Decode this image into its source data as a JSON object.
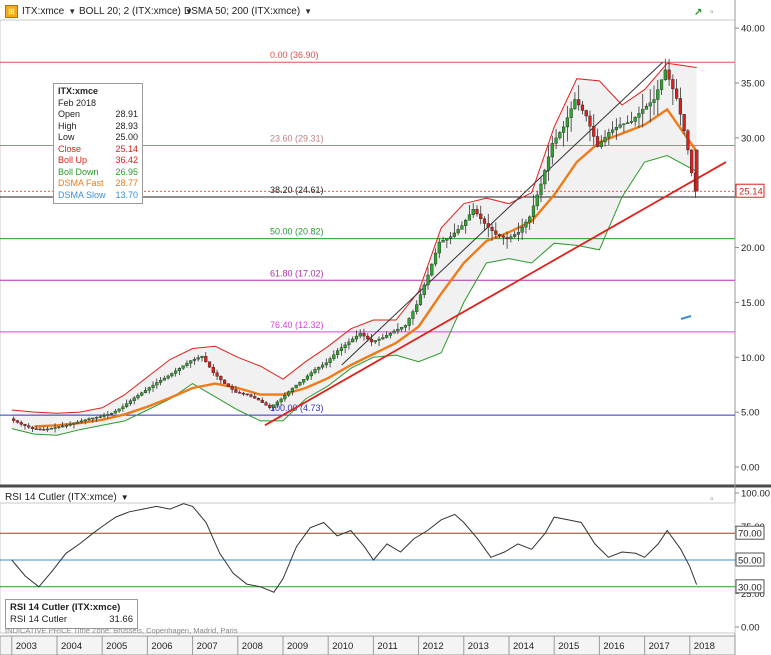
{
  "header": {
    "symbol": "ITX:xmce",
    "boll": "BOLL 20; 2 (ITX:xmce)",
    "dsma": "DSMA 50; 200 (ITX:xmce)",
    "symbol_icon": "chart-logo-icon",
    "trend_icon": "trend-arrow-icon",
    "window_icon": "window-restore-icon"
  },
  "legend": {
    "title": "ITX:xmce",
    "date": "Feb 2018",
    "rows": [
      {
        "label": "Open",
        "value": "28.91",
        "color": "#222222"
      },
      {
        "label": "High",
        "value": "28.93",
        "color": "#222222"
      },
      {
        "label": "Low",
        "value": "25.00",
        "color": "#222222"
      },
      {
        "label": "Close",
        "value": "25.14",
        "color": "#e0201b"
      },
      {
        "label": "Boll Up",
        "value": "36.42",
        "color": "#e0201b"
      },
      {
        "label": "Boll Down",
        "value": "26.95",
        "color": "#2a9a2a"
      },
      {
        "label": "DSMA Fast",
        "value": "28.77",
        "color": "#f07a18"
      },
      {
        "label": "DSMA Slow",
        "value": "13.70",
        "color": "#3a8fd6"
      }
    ]
  },
  "rsi_pane": {
    "title": "RSI 14 Cutler (ITX:xmce)",
    "box_title": "RSI 14 Cutler (ITX:xmce)",
    "box_label": "RSI 14 Cutler",
    "box_value": "31.66"
  },
  "footnote": "INDICATIVE PRICE  Time Zone: Brussels, Copenhagen, Madrid, Paris",
  "colors": {
    "bull": "#2fa32f",
    "bear": "#d8201c",
    "boll_up": "#e0201b",
    "boll_down": "#2a9a2a",
    "dsma_fast": "#f07a18",
    "trend": "#e0201b",
    "rsi_line": "#333333"
  },
  "chart_data": [
    {
      "type": "candlestick",
      "title": "ITX:xmce",
      "y_axis_labels": [
        "0.00",
        "5.00",
        "10.00",
        "15.00",
        "20.00",
        "25.00",
        "30.00",
        "35.00",
        "40.00"
      ],
      "ylim": [
        0,
        40
      ],
      "x_axis_labels": [
        "2003",
        "2004",
        "2005",
        "2006",
        "2007",
        "2008",
        "2009",
        "2010",
        "2011",
        "2012",
        "2013",
        "2014",
        "2015",
        "2016",
        "2017",
        "2018"
      ],
      "last_price_label": "25.14",
      "last_price": 25.14,
      "fibonacci_levels": [
        {
          "label": "0.00 (36.90)",
          "value": 36.9,
          "color": "#e05050"
        },
        {
          "label": "23.60 (29.31)",
          "value": 29.31,
          "color": "#c08080"
        },
        {
          "label": "38.20 (24.61)",
          "value": 24.61,
          "color": "#222222"
        },
        {
          "label": "50.00 (20.82)",
          "value": 20.82,
          "color": "#2a9a2a"
        },
        {
          "label": "61.80 (17.02)",
          "value": 17.02,
          "color": "#b030b0"
        },
        {
          "label": "76.40 (12.32)",
          "value": 12.32,
          "color": "#e040e0"
        },
        {
          "label": "100.00 (4.73)",
          "value": 4.73,
          "color": "#3030c0"
        }
      ],
      "price": [
        [
          2003.0,
          4.4
        ],
        [
          2003.25,
          3.9
        ],
        [
          2003.5,
          3.5
        ],
        [
          2003.75,
          3.4
        ],
        [
          2004.0,
          3.6
        ],
        [
          2004.25,
          3.8
        ],
        [
          2004.5,
          4.1
        ],
        [
          2004.75,
          4.4
        ],
        [
          2005.0,
          4.6
        ],
        [
          2005.25,
          4.9
        ],
        [
          2005.5,
          5.5
        ],
        [
          2005.75,
          6.3
        ],
        [
          2006.0,
          7.0
        ],
        [
          2006.25,
          7.7
        ],
        [
          2006.5,
          8.3
        ],
        [
          2006.75,
          9.0
        ],
        [
          2007.0,
          9.7
        ],
        [
          2007.25,
          10.1
        ],
        [
          2007.5,
          8.6
        ],
        [
          2007.75,
          7.6
        ],
        [
          2008.0,
          6.8
        ],
        [
          2008.25,
          6.6
        ],
        [
          2008.5,
          6.1
        ],
        [
          2008.75,
          5.4
        ],
        [
          2009.0,
          6.2
        ],
        [
          2009.25,
          7.2
        ],
        [
          2009.5,
          8.0
        ],
        [
          2009.75,
          8.9
        ],
        [
          2010.0,
          9.5
        ],
        [
          2010.25,
          10.6
        ],
        [
          2010.5,
          11.4
        ],
        [
          2010.75,
          12.2
        ],
        [
          2011.0,
          11.4
        ],
        [
          2011.25,
          11.8
        ],
        [
          2011.5,
          12.4
        ],
        [
          2011.75,
          12.9
        ],
        [
          2012.0,
          14.8
        ],
        [
          2012.25,
          17.5
        ],
        [
          2012.5,
          20.5
        ],
        [
          2012.75,
          21.0
        ],
        [
          2013.0,
          22.0
        ],
        [
          2013.25,
          23.5
        ],
        [
          2013.5,
          22.2
        ],
        [
          2013.75,
          21.2
        ],
        [
          2014.0,
          20.8
        ],
        [
          2014.25,
          21.4
        ],
        [
          2014.5,
          22.8
        ],
        [
          2014.75,
          25.8
        ],
        [
          2015.0,
          29.5
        ],
        [
          2015.25,
          31.0
        ],
        [
          2015.5,
          33.5
        ],
        [
          2015.75,
          32.0
        ],
        [
          2016.0,
          29.2
        ],
        [
          2016.25,
          30.5
        ],
        [
          2016.5,
          31.2
        ],
        [
          2016.75,
          31.5
        ],
        [
          2017.0,
          32.6
        ],
        [
          2017.25,
          33.5
        ],
        [
          2017.5,
          36.2
        ],
        [
          2017.75,
          33.6
        ],
        [
          2017.9,
          31.0
        ],
        [
          2018.0,
          28.9
        ],
        [
          2018.15,
          25.14
        ]
      ],
      "boll_up": [
        [
          2003.0,
          5.2
        ],
        [
          2003.5,
          5.0
        ],
        [
          2004.0,
          4.9
        ],
        [
          2004.5,
          5.0
        ],
        [
          2005.0,
          5.4
        ],
        [
          2005.5,
          6.6
        ],
        [
          2006.0,
          8.2
        ],
        [
          2006.5,
          9.8
        ],
        [
          2007.0,
          10.8
        ],
        [
          2007.5,
          11.0
        ],
        [
          2008.0,
          10.0
        ],
        [
          2008.5,
          9.2
        ],
        [
          2009.0,
          8.0
        ],
        [
          2009.5,
          9.6
        ],
        [
          2010.0,
          11.0
        ],
        [
          2010.5,
          12.6
        ],
        [
          2011.0,
          13.4
        ],
        [
          2011.5,
          13.4
        ],
        [
          2012.0,
          16.0
        ],
        [
          2012.5,
          21.8
        ],
        [
          2013.0,
          24.0
        ],
        [
          2013.5,
          24.5
        ],
        [
          2014.0,
          24.0
        ],
        [
          2014.5,
          25.0
        ],
        [
          2015.0,
          31.0
        ],
        [
          2015.5,
          35.4
        ],
        [
          2016.0,
          35.2
        ],
        [
          2016.5,
          33.0
        ],
        [
          2017.0,
          34.4
        ],
        [
          2017.5,
          36.8
        ],
        [
          2018.15,
          36.42
        ]
      ],
      "boll_down": [
        [
          2003.0,
          3.5
        ],
        [
          2003.5,
          3.0
        ],
        [
          2004.0,
          2.9
        ],
        [
          2004.5,
          3.4
        ],
        [
          2005.0,
          3.8
        ],
        [
          2005.5,
          4.2
        ],
        [
          2006.0,
          5.2
        ],
        [
          2006.5,
          6.2
        ],
        [
          2007.0,
          7.6
        ],
        [
          2007.5,
          6.4
        ],
        [
          2008.0,
          5.2
        ],
        [
          2008.5,
          4.2
        ],
        [
          2009.0,
          4.2
        ],
        [
          2009.5,
          6.2
        ],
        [
          2010.0,
          7.4
        ],
        [
          2010.5,
          9.0
        ],
        [
          2011.0,
          10.0
        ],
        [
          2011.5,
          10.2
        ],
        [
          2012.0,
          9.6
        ],
        [
          2012.5,
          10.4
        ],
        [
          2013.0,
          15.0
        ],
        [
          2013.5,
          18.6
        ],
        [
          2014.0,
          19.0
        ],
        [
          2014.5,
          18.6
        ],
        [
          2015.0,
          20.4
        ],
        [
          2015.5,
          20.2
        ],
        [
          2016.0,
          19.8
        ],
        [
          2016.5,
          24.6
        ],
        [
          2017.0,
          27.8
        ],
        [
          2017.5,
          28.4
        ],
        [
          2018.15,
          26.95
        ]
      ],
      "dsma_fast": [
        [
          2003.5,
          3.7
        ],
        [
          2004.0,
          3.8
        ],
        [
          2004.5,
          4.0
        ],
        [
          2005.0,
          4.3
        ],
        [
          2005.5,
          4.8
        ],
        [
          2006.0,
          5.5
        ],
        [
          2006.5,
          6.3
        ],
        [
          2007.0,
          7.2
        ],
        [
          2007.5,
          7.6
        ],
        [
          2008.0,
          7.2
        ],
        [
          2008.5,
          6.6
        ],
        [
          2009.0,
          6.6
        ],
        [
          2009.5,
          7.2
        ],
        [
          2010.0,
          8.1
        ],
        [
          2010.5,
          9.3
        ],
        [
          2011.0,
          10.3
        ],
        [
          2011.5,
          11.3
        ],
        [
          2012.0,
          12.8
        ],
        [
          2012.5,
          15.8
        ],
        [
          2013.0,
          18.6
        ],
        [
          2013.5,
          20.6
        ],
        [
          2014.0,
          21.4
        ],
        [
          2014.5,
          22.4
        ],
        [
          2015.0,
          24.8
        ],
        [
          2015.5,
          27.8
        ],
        [
          2016.0,
          29.6
        ],
        [
          2016.5,
          30.4
        ],
        [
          2017.0,
          31.2
        ],
        [
          2017.5,
          32.6
        ],
        [
          2018.15,
          28.77
        ]
      ],
      "trendlines": [
        {
          "from": [
            2008.6,
            3.8
          ],
          "to": [
            2018.8,
            27.8
          ],
          "color": "#e0201b"
        },
        {
          "from": [
            2010.3,
            9.3
          ],
          "to": [
            2017.4,
            36.9
          ],
          "color": "#333333"
        }
      ]
    },
    {
      "type": "line",
      "title": "RSI 14 Cutler (ITX:xmce)",
      "y_axis_labels": [
        "0.00",
        "25.00",
        "50.00",
        "75.00",
        "100.00"
      ],
      "ylim": [
        0,
        100
      ],
      "reference_lines": [
        {
          "label": "70.00",
          "value": 70,
          "color": "#e0201b"
        },
        {
          "label": "50.00",
          "value": 50,
          "color": "#3a8fd6"
        },
        {
          "label": "30.00",
          "value": 30,
          "color": "#2a9a2a"
        }
      ],
      "values": [
        [
          2003.0,
          50
        ],
        [
          2003.3,
          38
        ],
        [
          2003.6,
          30
        ],
        [
          2003.9,
          42
        ],
        [
          2004.2,
          55
        ],
        [
          2004.5,
          62
        ],
        [
          2004.8,
          70
        ],
        [
          2005.0,
          75
        ],
        [
          2005.3,
          82
        ],
        [
          2005.6,
          86
        ],
        [
          2005.9,
          88
        ],
        [
          2006.2,
          90
        ],
        [
          2006.5,
          88
        ],
        [
          2006.8,
          92
        ],
        [
          2007.0,
          90
        ],
        [
          2007.3,
          78
        ],
        [
          2007.6,
          55
        ],
        [
          2007.9,
          40
        ],
        [
          2008.2,
          32
        ],
        [
          2008.5,
          30
        ],
        [
          2008.8,
          26
        ],
        [
          2009.0,
          36
        ],
        [
          2009.3,
          60
        ],
        [
          2009.6,
          74
        ],
        [
          2009.9,
          78
        ],
        [
          2010.2,
          68
        ],
        [
          2010.5,
          72
        ],
        [
          2010.8,
          60
        ],
        [
          2011.0,
          50
        ],
        [
          2011.3,
          62
        ],
        [
          2011.6,
          56
        ],
        [
          2011.9,
          66
        ],
        [
          2012.2,
          72
        ],
        [
          2012.5,
          80
        ],
        [
          2012.8,
          84
        ],
        [
          2013.0,
          78
        ],
        [
          2013.3,
          66
        ],
        [
          2013.6,
          52
        ],
        [
          2013.9,
          56
        ],
        [
          2014.2,
          62
        ],
        [
          2014.5,
          58
        ],
        [
          2014.8,
          70
        ],
        [
          2015.0,
          82
        ],
        [
          2015.3,
          80
        ],
        [
          2015.6,
          78
        ],
        [
          2015.9,
          62
        ],
        [
          2016.2,
          52
        ],
        [
          2016.5,
          56
        ],
        [
          2016.8,
          55
        ],
        [
          2017.0,
          52
        ],
        [
          2017.3,
          62
        ],
        [
          2017.5,
          72
        ],
        [
          2017.8,
          58
        ],
        [
          2018.0,
          45
        ],
        [
          2018.15,
          31.66
        ]
      ]
    }
  ]
}
